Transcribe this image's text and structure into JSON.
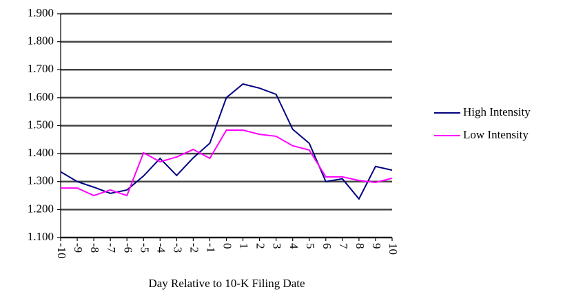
{
  "chart_data": {
    "type": "line",
    "x_label": "Day Relative to 10-K Filing Date",
    "categories": [
      "-10",
      "-9",
      "-8",
      "-7",
      "-6",
      "-5",
      "-4",
      "-3",
      "-2",
      "-1",
      "0",
      "1",
      "2",
      "3",
      "4",
      "5",
      "6",
      "7",
      "8",
      "9",
      "10"
    ],
    "series": [
      {
        "name": "High Intensity",
        "color": "#000080",
        "values": [
          1.335,
          1.3,
          1.28,
          1.258,
          1.27,
          1.32,
          1.383,
          1.322,
          1.385,
          1.437,
          1.6,
          1.649,
          1.634,
          1.612,
          1.487,
          1.437,
          1.3,
          1.31,
          1.238,
          1.354,
          1.341
        ]
      },
      {
        "name": "Low Intensity",
        "color": "#ff00ff",
        "values": [
          1.277,
          1.277,
          1.25,
          1.27,
          1.25,
          1.403,
          1.371,
          1.388,
          1.415,
          1.383,
          1.484,
          1.484,
          1.469,
          1.462,
          1.428,
          1.413,
          1.317,
          1.317,
          1.304,
          1.297,
          1.312
        ]
      }
    ],
    "ylim": [
      1.1,
      1.9
    ],
    "yticks": [
      {
        "value": 1.1,
        "label": "1.100"
      },
      {
        "value": 1.2,
        "label": "1.200"
      },
      {
        "value": 1.3,
        "label": "1.300"
      },
      {
        "value": 1.4,
        "label": "1.400"
      },
      {
        "value": 1.5,
        "label": "1.500"
      },
      {
        "value": 1.6,
        "label": "1.600"
      },
      {
        "value": 1.7,
        "label": "1.700"
      },
      {
        "value": 1.8,
        "label": "1.800"
      },
      {
        "value": 1.9,
        "label": "1.900"
      }
    ],
    "grid": true,
    "legend": "right"
  }
}
